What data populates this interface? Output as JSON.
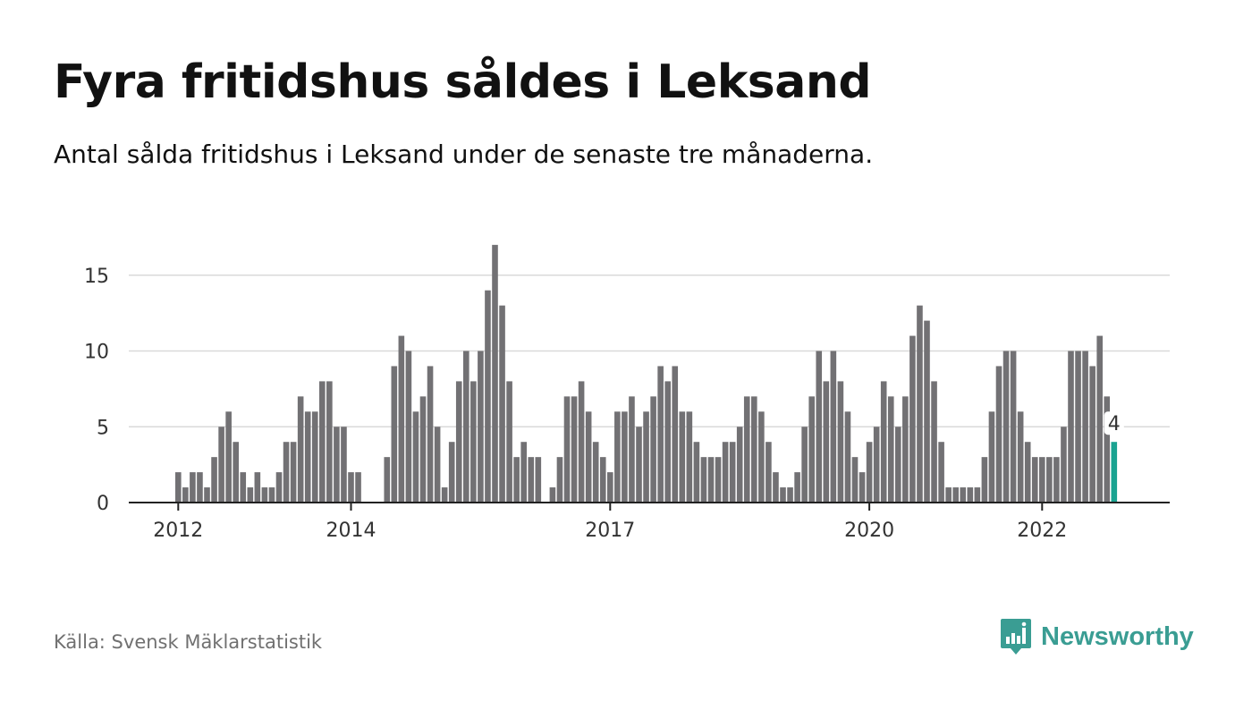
{
  "header": {
    "title": "Fyra fritidshus såldes i Leksand",
    "subtitle": "Antal sålda fritidshus i Leksand under de senaste tre månaderna."
  },
  "footer": {
    "source": "Källa: Svensk Mäklarstatistik",
    "brand": "Newsworthy"
  },
  "colors": {
    "bar": "#727174",
    "highlight": "#1aa391",
    "grid": "#d9d9d9",
    "axis": "#222222",
    "brand": "#3a9d93"
  },
  "icons": {
    "brand_logo": "newsworthy-bar-chart-icon"
  },
  "chart_data": {
    "type": "bar",
    "x_start": "2012-01",
    "x_unit": "month",
    "x_ticks": [
      "2012",
      "2014",
      "2017",
      "2020",
      "2022"
    ],
    "x_tick_months": [
      "2012-01",
      "2014-01",
      "2017-01",
      "2020-01",
      "2022-01"
    ],
    "ylim": [
      0,
      18
    ],
    "y_ticks": [
      0,
      5,
      10,
      15
    ],
    "grid": true,
    "values": [
      2,
      1,
      2,
      2,
      1,
      3,
      5,
      6,
      4,
      2,
      1,
      2,
      1,
      1,
      2,
      4,
      4,
      7,
      6,
      6,
      8,
      8,
      5,
      5,
      2,
      2,
      0,
      0,
      0,
      3,
      9,
      11,
      10,
      6,
      7,
      9,
      5,
      1,
      4,
      8,
      10,
      8,
      10,
      14,
      17,
      13,
      8,
      3,
      4,
      3,
      3,
      0,
      1,
      3,
      7,
      7,
      8,
      6,
      4,
      3,
      2,
      6,
      6,
      7,
      5,
      6,
      7,
      9,
      8,
      9,
      6,
      6,
      4,
      3,
      3,
      3,
      4,
      4,
      5,
      7,
      7,
      6,
      4,
      2,
      1,
      1,
      2,
      5,
      7,
      10,
      8,
      10,
      8,
      6,
      3,
      2,
      4,
      5,
      8,
      7,
      5,
      7,
      11,
      13,
      12,
      8,
      4,
      1,
      1,
      1,
      1,
      1,
      3,
      6,
      9,
      10,
      10,
      6,
      4,
      3,
      3,
      3,
      3,
      5,
      10,
      10,
      10,
      9,
      11,
      7,
      4
    ],
    "highlight_last": true,
    "last_label": "4"
  }
}
